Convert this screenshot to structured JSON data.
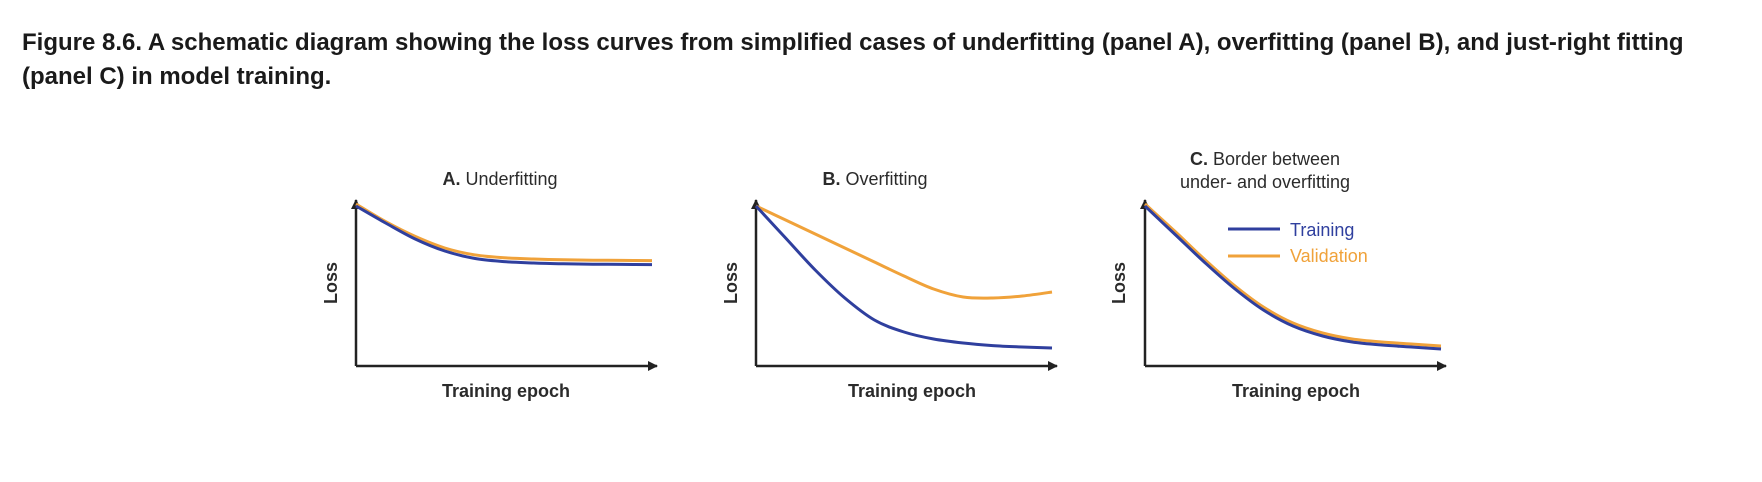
{
  "caption": "Figure 8.6. A schematic diagram showing the loss curves from simplified cases of underfitting (panel A), overfitting (panel B), and just-right fitting (panel C) in model training.",
  "colors": {
    "training": "#2f3f9e",
    "validation": "#f0a23a",
    "axis": "#222222",
    "text": "#2b2b2b"
  },
  "panels": [
    {
      "letter": "A.",
      "title": "Underfitting",
      "title_line2": "",
      "xlabel": "Training epoch",
      "ylabel": "Loss",
      "training": [
        [
          0,
          0.8
        ],
        [
          0.1,
          0.715
        ],
        [
          0.2,
          0.635
        ],
        [
          0.3,
          0.575
        ],
        [
          0.4,
          0.538
        ],
        [
          0.5,
          0.522
        ],
        [
          0.6,
          0.515
        ],
        [
          0.7,
          0.511
        ],
        [
          0.8,
          0.509
        ],
        [
          0.9,
          0.508
        ],
        [
          1,
          0.507
        ]
      ],
      "validation": [
        [
          0,
          0.81
        ],
        [
          0.1,
          0.722
        ],
        [
          0.2,
          0.648
        ],
        [
          0.3,
          0.59
        ],
        [
          0.4,
          0.556
        ],
        [
          0.5,
          0.541
        ],
        [
          0.6,
          0.535
        ],
        [
          0.7,
          0.531
        ],
        [
          0.8,
          0.529
        ],
        [
          0.9,
          0.528
        ],
        [
          1,
          0.527
        ]
      ]
    },
    {
      "letter": "B.",
      "title": "Overfitting",
      "title_line2": "",
      "xlabel": "Training epoch",
      "ylabel": "Loss",
      "training": [
        [
          0,
          0.8
        ],
        [
          0.1,
          0.64
        ],
        [
          0.2,
          0.48
        ],
        [
          0.3,
          0.34
        ],
        [
          0.4,
          0.23
        ],
        [
          0.5,
          0.17
        ],
        [
          0.6,
          0.135
        ],
        [
          0.7,
          0.115
        ],
        [
          0.8,
          0.102
        ],
        [
          0.9,
          0.095
        ],
        [
          1,
          0.09
        ]
      ],
      "validation": [
        [
          0,
          0.8
        ],
        [
          0.1,
          0.73
        ],
        [
          0.2,
          0.66
        ],
        [
          0.3,
          0.59
        ],
        [
          0.4,
          0.52
        ],
        [
          0.5,
          0.45
        ],
        [
          0.6,
          0.385
        ],
        [
          0.7,
          0.345
        ],
        [
          0.8,
          0.34
        ],
        [
          0.9,
          0.35
        ],
        [
          1,
          0.37
        ]
      ]
    },
    {
      "letter": "C.",
      "title": "Border between",
      "title_line2": "under- and overfitting",
      "xlabel": "Training epoch",
      "ylabel": "Loss",
      "training": [
        [
          0,
          0.8
        ],
        [
          0.1,
          0.66
        ],
        [
          0.2,
          0.52
        ],
        [
          0.3,
          0.39
        ],
        [
          0.4,
          0.28
        ],
        [
          0.5,
          0.2
        ],
        [
          0.6,
          0.15
        ],
        [
          0.7,
          0.12
        ],
        [
          0.8,
          0.105
        ],
        [
          0.9,
          0.095
        ],
        [
          1,
          0.085
        ]
      ],
      "validation": [
        [
          0,
          0.81
        ],
        [
          0.1,
          0.675
        ],
        [
          0.2,
          0.535
        ],
        [
          0.3,
          0.405
        ],
        [
          0.4,
          0.295
        ],
        [
          0.5,
          0.215
        ],
        [
          0.6,
          0.165
        ],
        [
          0.7,
          0.135
        ],
        [
          0.8,
          0.12
        ],
        [
          0.9,
          0.11
        ],
        [
          1,
          0.1
        ]
      ]
    }
  ],
  "legend": {
    "training_label": "Training",
    "validation_label": "Validation"
  }
}
